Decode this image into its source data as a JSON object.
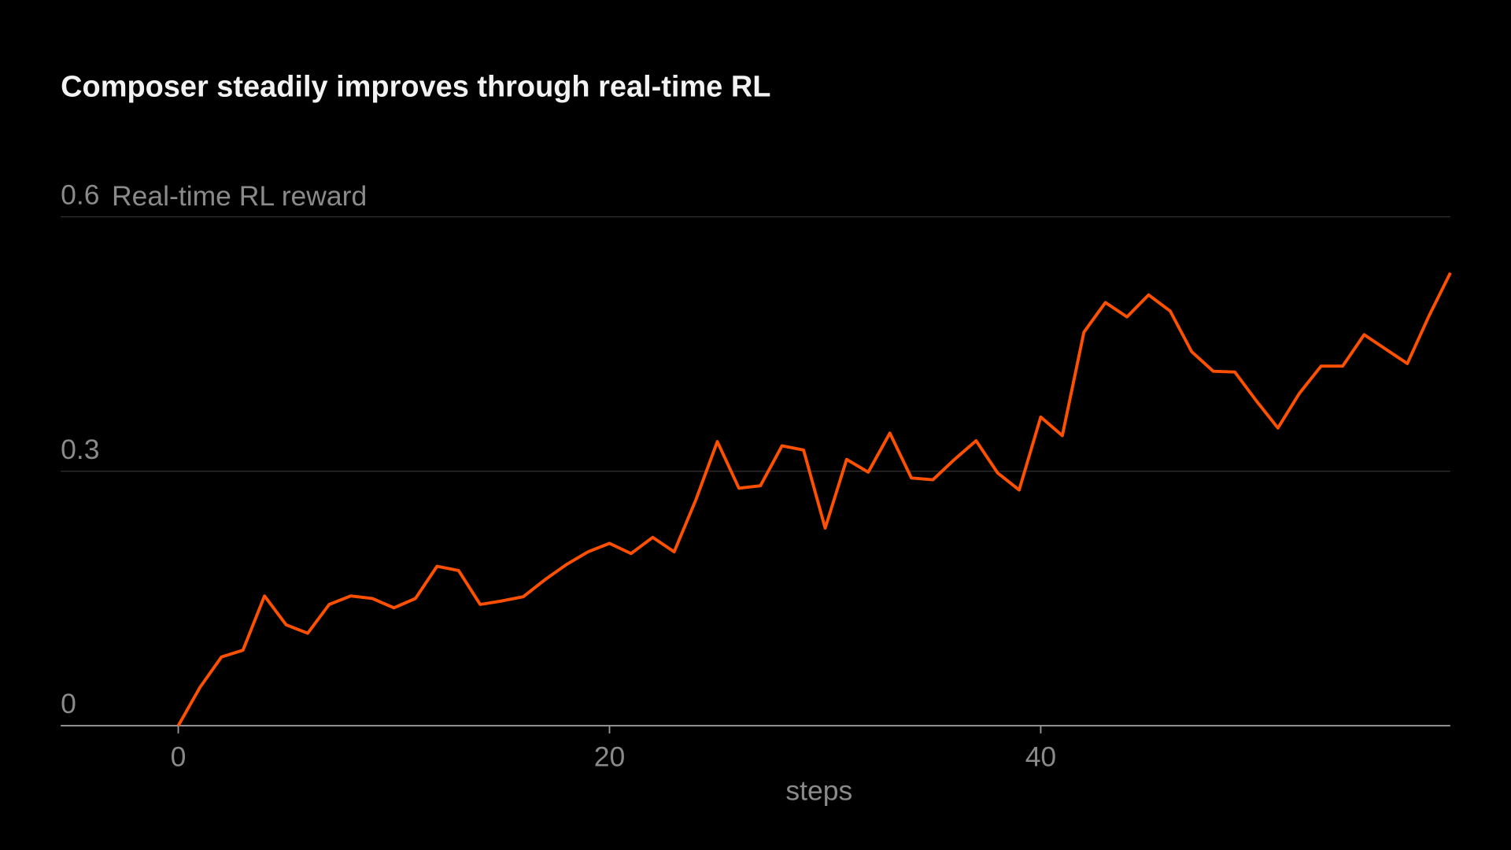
{
  "chart_data": {
    "type": "line",
    "title": "Composer steadily improves through real-time RL",
    "ylabel": "Real-time RL reward",
    "xlabel": "steps",
    "xlim": [
      -5.5,
      59
    ],
    "ylim": [
      0,
      0.6
    ],
    "xticks": [
      0,
      20,
      40
    ],
    "yticks": [
      0,
      0.3,
      0.6
    ],
    "ytick_labels": [
      "0",
      "0.3",
      "0.6"
    ],
    "grid": true,
    "line_color": "#ff5000",
    "x": [
      0,
      1,
      2,
      3,
      4,
      5,
      6,
      7,
      8,
      9,
      10,
      11,
      12,
      13,
      14,
      15,
      16,
      17,
      18,
      19,
      20,
      21,
      22,
      23,
      24,
      25,
      26,
      27,
      28,
      29,
      30,
      31,
      32,
      33,
      34,
      35,
      36,
      37,
      38,
      39,
      40,
      41,
      42,
      43,
      44,
      45,
      46,
      47,
      48,
      49,
      50,
      51,
      52,
      53,
      54,
      55,
      56,
      57,
      58,
      59
    ],
    "y": [
      0,
      0.045,
      0.081,
      0.089,
      0.153,
      0.119,
      0.109,
      0.143,
      0.153,
      0.15,
      0.139,
      0.15,
      0.188,
      0.183,
      0.143,
      0.147,
      0.152,
      0.172,
      0.19,
      0.205,
      0.215,
      0.203,
      0.222,
      0.205,
      0.266,
      0.335,
      0.28,
      0.283,
      0.33,
      0.325,
      0.233,
      0.314,
      0.299,
      0.345,
      0.292,
      0.29,
      0.314,
      0.336,
      0.298,
      0.278,
      0.364,
      0.342,
      0.464,
      0.499,
      0.482,
      0.508,
      0.489,
      0.441,
      0.418,
      0.417,
      0.383,
      0.351,
      0.392,
      0.424,
      0.424,
      0.461,
      0.444,
      0.427,
      0.483,
      0.534
    ]
  }
}
